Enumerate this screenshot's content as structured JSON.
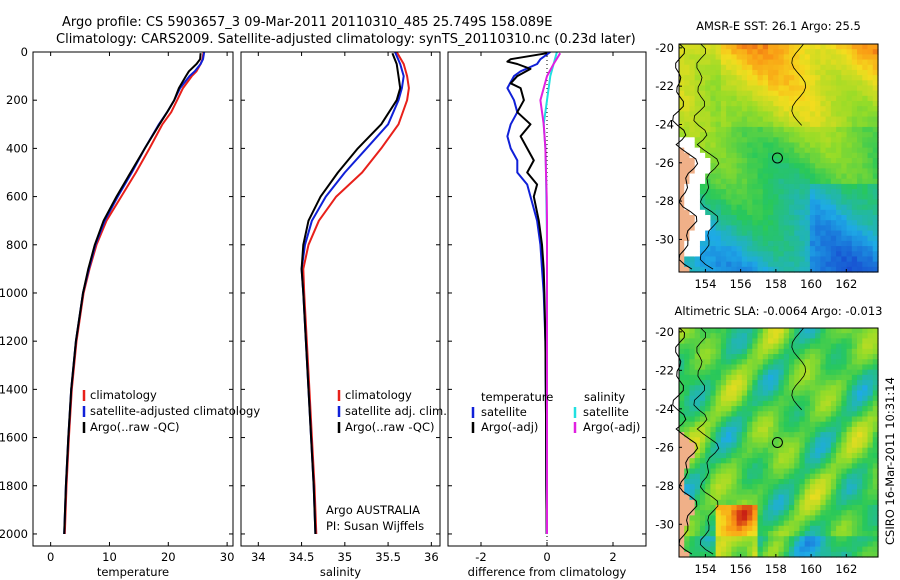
{
  "title": {
    "line1": "Argo profile: CS 5903657_3 09-Mar-2011 20110310_485 25.749S 158.089E",
    "line2": "Climatology: CARS2009. Satellite-adjusted climatology: synTS_20110310.nc (0.23d later)"
  },
  "side_label": "CSIRO 16-Mar-2011 10:31:14",
  "credit": {
    "line1": "Argo AUSTRALIA",
    "line2": "PI: Susan Wijffels"
  },
  "colors": {
    "climatology": "#e8201a",
    "satellite": "#1020d8",
    "argo": "#000000",
    "sal_satellite": "#20e0e0",
    "sal_argo": "#e020e0"
  },
  "chart_data": [
    {
      "type": "line",
      "id": "temperature",
      "xlabel": "temperature",
      "ylabel": "",
      "xlim": [
        -3,
        31
      ],
      "ylim": [
        2050,
        0
      ],
      "xticks": [
        0,
        10,
        20,
        30
      ],
      "yticks": [
        0,
        200,
        400,
        600,
        800,
        1000,
        1200,
        1400,
        1600,
        1800,
        2000
      ],
      "legend": [
        "climatology",
        "satellite-adjusted climatology",
        "Argo(..raw -QC)"
      ],
      "series": [
        {
          "name": "climatology",
          "color": "climatology",
          "depth": [
            0,
            30,
            50,
            80,
            100,
            150,
            200,
            250,
            300,
            400,
            500,
            600,
            700,
            800,
            900,
            1000,
            1200,
            1400,
            1600,
            1800,
            2000
          ],
          "values": [
            26.0,
            25.8,
            25.5,
            24.8,
            24.0,
            22.5,
            21.5,
            20.5,
            19.0,
            16.8,
            14.5,
            12.0,
            9.5,
            7.8,
            6.6,
            5.6,
            4.4,
            3.6,
            3.1,
            2.7,
            2.4
          ]
        },
        {
          "name": "satellite-adjusted climatology",
          "color": "satellite",
          "depth": [
            0,
            30,
            50,
            80,
            100,
            150,
            200,
            250,
            300,
            400,
            500,
            600,
            700,
            800,
            900,
            1000,
            1200,
            1400,
            1600,
            1800,
            2000
          ],
          "values": [
            26.1,
            25.9,
            25.5,
            24.5,
            23.6,
            22.0,
            21.0,
            19.8,
            18.4,
            16.0,
            13.8,
            11.4,
            9.2,
            7.6,
            6.5,
            5.5,
            4.3,
            3.5,
            3.0,
            2.6,
            2.3
          ]
        },
        {
          "name": "Argo(..raw -QC)",
          "color": "argo",
          "depth": [
            5,
            30,
            50,
            80,
            100,
            150,
            200,
            250,
            300,
            400,
            500,
            600,
            700,
            800,
            900,
            1000,
            1200,
            1400,
            1600,
            1800,
            2000
          ],
          "values": [
            25.5,
            25.4,
            24.8,
            23.5,
            23.0,
            21.8,
            21.0,
            19.8,
            18.5,
            16.0,
            13.6,
            11.2,
            9.0,
            7.5,
            6.4,
            5.5,
            4.3,
            3.5,
            3.0,
            2.6,
            2.3
          ]
        }
      ]
    },
    {
      "type": "line",
      "id": "salinity",
      "xlabel": "salinity",
      "ylabel": "",
      "xlim": [
        33.8,
        36.1
      ],
      "ylim": [
        2050,
        0
      ],
      "xticks": [
        34,
        34.5,
        35,
        35.5,
        36
      ],
      "legend": [
        "climatology",
        "satellite adj. clim.",
        "Argo(..raw -QC)"
      ],
      "series": [
        {
          "name": "climatology",
          "color": "climatology",
          "depth": [
            0,
            50,
            100,
            150,
            200,
            300,
            400,
            500,
            600,
            700,
            800,
            900,
            1000,
            1200,
            1400,
            1600,
            1800,
            2000
          ],
          "values": [
            35.6,
            35.68,
            35.72,
            35.74,
            35.72,
            35.62,
            35.42,
            35.2,
            34.9,
            34.7,
            34.58,
            34.52,
            34.53,
            34.56,
            34.59,
            34.62,
            34.65,
            34.67
          ]
        },
        {
          "name": "satellite adj. clim.",
          "color": "satellite",
          "depth": [
            0,
            50,
            100,
            150,
            200,
            300,
            400,
            500,
            600,
            700,
            800,
            900,
            1000,
            1200,
            1400,
            1600,
            1800,
            2000
          ],
          "values": [
            35.58,
            35.64,
            35.68,
            35.66,
            35.62,
            35.5,
            35.25,
            35.0,
            34.78,
            34.62,
            34.54,
            34.5,
            34.52,
            34.55,
            34.58,
            34.61,
            34.64,
            34.66
          ]
        },
        {
          "name": "Argo(..raw -QC)",
          "color": "argo",
          "depth": [
            5,
            50,
            100,
            150,
            200,
            300,
            400,
            500,
            600,
            700,
            800,
            900,
            1000,
            1200,
            1400,
            1600,
            1800,
            2000
          ],
          "values": [
            35.55,
            35.6,
            35.62,
            35.64,
            35.6,
            35.42,
            35.15,
            34.92,
            34.72,
            34.58,
            34.52,
            34.5,
            34.52,
            34.55,
            34.58,
            34.61,
            34.64,
            34.66
          ]
        }
      ]
    },
    {
      "type": "line",
      "id": "difference",
      "xlabel": "difference from climatology",
      "ylabel": "",
      "xlim": [
        -3,
        3
      ],
      "ylim": [
        2050,
        0
      ],
      "xticks": [
        -2,
        0,
        2
      ],
      "legend": [
        "temperature",
        "satellite",
        "Argo(-adj)",
        "salinity",
        "satellite",
        "Argo(-adj)"
      ],
      "series": [
        {
          "name": "temperature satellite",
          "color": "satellite",
          "depth": [
            0,
            30,
            50,
            80,
            100,
            150,
            200,
            250,
            300,
            350,
            400,
            450,
            500,
            550,
            600,
            700,
            800,
            900,
            1000,
            1200,
            1500,
            1800,
            2000
          ],
          "values": [
            0.1,
            -0.2,
            -0.3,
            -0.8,
            -1.0,
            -1.2,
            -1.0,
            -0.9,
            -1.1,
            -1.2,
            -1.1,
            -0.9,
            -0.9,
            -0.6,
            -0.5,
            -0.3,
            -0.2,
            -0.15,
            -0.1,
            -0.05,
            -0.03,
            -0.02,
            -0.01
          ]
        },
        {
          "name": "temperature Argo(-adj)",
          "color": "argo",
          "depth": [
            5,
            30,
            40,
            50,
            70,
            100,
            130,
            150,
            200,
            250,
            300,
            350,
            400,
            450,
            500,
            550,
            600,
            700,
            800,
            900,
            1000,
            1200,
            1500,
            1800,
            2000
          ],
          "values": [
            0.0,
            -1.1,
            -1.2,
            -0.9,
            -0.5,
            -0.9,
            -1.1,
            -0.8,
            -0.7,
            -0.9,
            -0.5,
            -0.8,
            -0.6,
            -0.4,
            -0.6,
            -0.3,
            -0.4,
            -0.25,
            -0.15,
            -0.1,
            -0.08,
            -0.05,
            -0.03,
            -0.02,
            -0.01
          ]
        },
        {
          "name": "salinity satellite",
          "color": "sal_satellite",
          "depth": [
            0,
            50,
            100,
            200,
            300,
            400,
            500,
            600,
            700,
            800,
            1000,
            1500,
            2000
          ],
          "values": [
            0.3,
            0.2,
            0.1,
            0.0,
            -0.1,
            -0.05,
            -0.03,
            -0.02,
            -0.01,
            0.0,
            0.0,
            0.0,
            0.0
          ]
        },
        {
          "name": "salinity Argo(-adj)",
          "color": "sal_argo",
          "depth": [
            5,
            50,
            100,
            200,
            300,
            400,
            500,
            600,
            700,
            800,
            1000,
            1500,
            2000
          ],
          "values": [
            0.4,
            0.2,
            0.0,
            -0.2,
            -0.1,
            -0.05,
            -0.03,
            -0.01,
            0.0,
            0.0,
            0.0,
            0.0,
            0.0
          ]
        }
      ]
    },
    {
      "type": "heatmap",
      "id": "sst_map",
      "title": "AMSR-E SST: 26.1  Argo: 25.5",
      "xticks": [
        154,
        156,
        158,
        160,
        162
      ],
      "yticks": [
        -20,
        -22,
        -24,
        -26,
        -28,
        -30
      ],
      "xlim": [
        152.5,
        163.8
      ],
      "ylim": [
        -31.7,
        -19.8
      ],
      "marker": [
        158.089,
        -25.749
      ],
      "colormap": "temperature"
    },
    {
      "type": "heatmap",
      "id": "sla_map",
      "title": "Altimetric SLA: -0.0064  Argo: -0.013",
      "xticks": [
        154,
        156,
        158,
        160,
        162
      ],
      "yticks": [
        -20,
        -22,
        -24,
        -26,
        -28,
        -30
      ],
      "xlim": [
        152.5,
        163.8
      ],
      "ylim": [
        -31.7,
        -19.8
      ],
      "marker": [
        158.089,
        -25.749
      ],
      "colormap": "sla"
    }
  ]
}
